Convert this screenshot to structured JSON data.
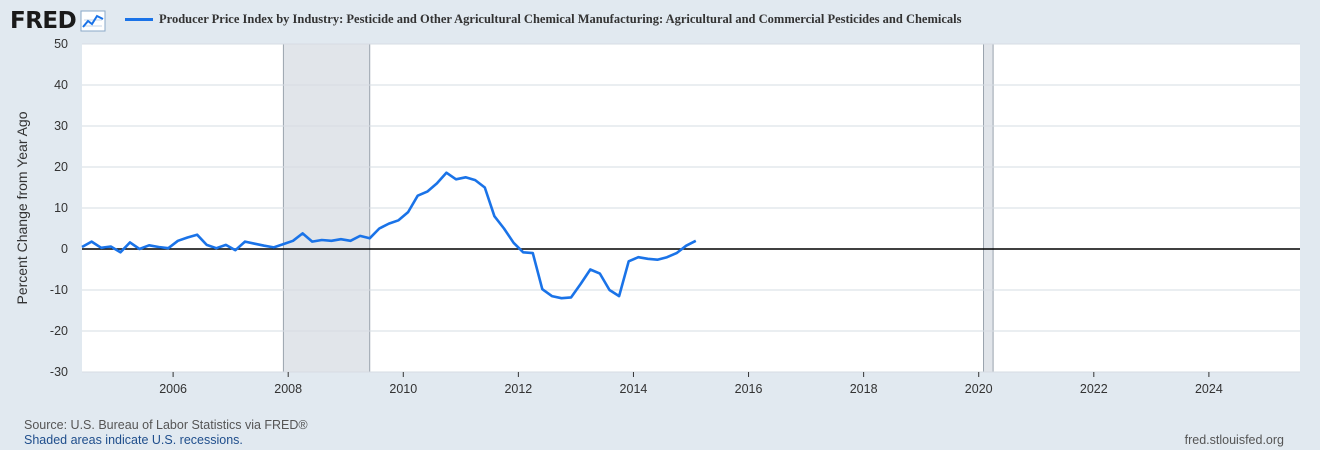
{
  "logo": {
    "text": "FRED",
    "icon": "chart-line-icon"
  },
  "colors": {
    "series": "#1a73e8",
    "recession": "#e1e5ea",
    "plot_bg": "#ffffff",
    "grid": "#d6dce3",
    "zero_line": "#000000"
  },
  "footer": {
    "source": "Source: U.S. Bureau of Labor Statistics via FRED®",
    "note": "Shaded areas indicate U.S. recessions.",
    "url": "fred.stlouisfed.org"
  },
  "chart_data": {
    "type": "line",
    "title": "",
    "ylabel": "Percent Change from Year Ago",
    "xlabel": "",
    "ylim": [
      -30,
      50
    ],
    "xlim": [
      "2004-06",
      "2025-08"
    ],
    "yticks": [
      50,
      40,
      30,
      20,
      10,
      0,
      -10,
      -20,
      -30
    ],
    "xticks": [
      "2006",
      "2008",
      "2010",
      "2012",
      "2014",
      "2016",
      "2018",
      "2020",
      "2022",
      "2024"
    ],
    "grid": true,
    "legend": "top-left",
    "recessions": [
      [
        "2007-12",
        "2009-06"
      ],
      [
        "2020-02",
        "2020-04"
      ]
    ],
    "series": [
      {
        "name": "Producer Price Index by Industry: Pesticide and Other Agricultural Chemical Manufacturing: Agricultural and Commercial Pesticides and Chemicals",
        "points": [
          [
            "2004-06",
            0.5
          ],
          [
            "2004-08",
            1.8
          ],
          [
            "2004-10",
            0.3
          ],
          [
            "2004-12",
            0.6
          ],
          [
            "2005-02",
            -0.8
          ],
          [
            "2005-04",
            1.6
          ],
          [
            "2005-06",
            0.0
          ],
          [
            "2005-08",
            0.9
          ],
          [
            "2005-10",
            0.5
          ],
          [
            "2005-12",
            0.2
          ],
          [
            "2006-02",
            2.0
          ],
          [
            "2006-04",
            2.8
          ],
          [
            "2006-06",
            3.5
          ],
          [
            "2006-08",
            1.0
          ],
          [
            "2006-10",
            0.2
          ],
          [
            "2006-12",
            1.0
          ],
          [
            "2007-02",
            -0.3
          ],
          [
            "2007-04",
            1.8
          ],
          [
            "2007-06",
            1.3
          ],
          [
            "2007-08",
            0.8
          ],
          [
            "2007-10",
            0.4
          ],
          [
            "2007-12",
            1.2
          ],
          [
            "2008-02",
            2.0
          ],
          [
            "2008-04",
            3.8
          ],
          [
            "2008-06",
            1.8
          ],
          [
            "2008-08",
            2.2
          ],
          [
            "2008-10",
            2.0
          ],
          [
            "2008-12",
            2.4
          ],
          [
            "2009-02",
            2.0
          ],
          [
            "2009-04",
            3.2
          ],
          [
            "2009-06",
            2.6
          ],
          [
            "2009-08",
            5.0
          ],
          [
            "2009-10",
            6.2
          ],
          [
            "2009-12",
            7.0
          ],
          [
            "2010-02",
            9.0
          ],
          [
            "2010-04",
            13.0
          ],
          [
            "2010-06",
            14.0
          ],
          [
            "2010-08",
            16.0
          ],
          [
            "2010-10",
            18.6
          ],
          [
            "2010-12",
            17.0
          ],
          [
            "2011-02",
            17.5
          ],
          [
            "2011-04",
            16.8
          ],
          [
            "2011-06",
            15.0
          ],
          [
            "2011-08",
            8.0
          ],
          [
            "2011-10",
            5.0
          ],
          [
            "2011-12",
            1.5
          ],
          [
            "2012-02",
            -0.8
          ],
          [
            "2012-04",
            -1.0
          ],
          [
            "2012-06",
            -9.8
          ],
          [
            "2012-08",
            -11.5
          ],
          [
            "2012-10",
            -12.0
          ],
          [
            "2012-12",
            -11.8
          ],
          [
            "2013-02",
            -8.5
          ],
          [
            "2013-04",
            -5.0
          ],
          [
            "2013-06",
            -6.0
          ],
          [
            "2013-08",
            -10.0
          ],
          [
            "2013-10",
            -11.5
          ],
          [
            "2013-12",
            -3.0
          ],
          [
            "2014-02",
            -2.0
          ],
          [
            "2014-04",
            -2.4
          ],
          [
            "2014-06",
            -2.6
          ],
          [
            "2014-08",
            -2.0
          ],
          [
            "2014-10",
            -1.0
          ],
          [
            "2014-12",
            0.8
          ],
          [
            "2015-02",
            2.0
          ]
        ]
      }
    ]
  }
}
